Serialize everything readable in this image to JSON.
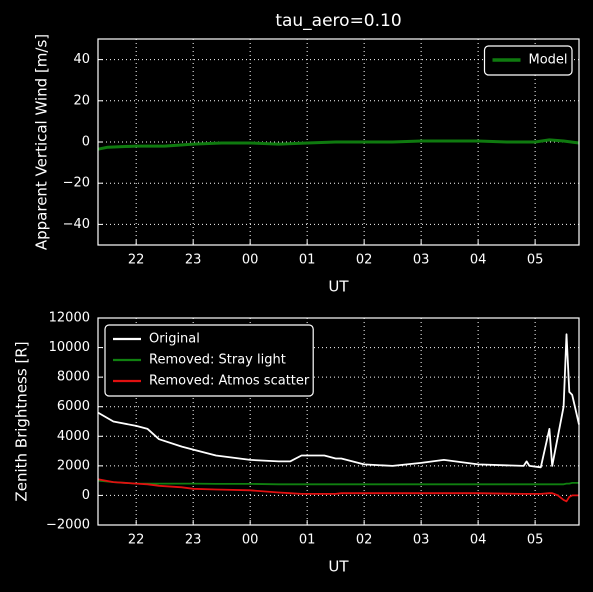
{
  "chart_data": [
    {
      "type": "line",
      "title": "tau_aero=0.10",
      "xlabel": "UT",
      "ylabel": "Apparent Vertical Wind [m/s]",
      "x": [
        21.33,
        21.5,
        22,
        22.5,
        23,
        23.5,
        24,
        24.5,
        25,
        25.5,
        26,
        26.5,
        27,
        27.5,
        28,
        28.5,
        29,
        29.25,
        29.5,
        29.77
      ],
      "series": [
        {
          "name": "Model",
          "color": "#0f7a0f",
          "values": [
            -3.5,
            -2.5,
            -2,
            -2,
            -1,
            -0.5,
            -0.5,
            -1,
            -0.5,
            0,
            0,
            0,
            0.5,
            0.5,
            0.5,
            0,
            0,
            1,
            0.5,
            -0.5
          ]
        }
      ],
      "xlim": [
        21.33,
        29.77
      ],
      "xticks": [
        22,
        23,
        {
          "value": 24,
          "label": "00"
        },
        {
          "value": 25,
          "label": "01"
        },
        {
          "value": 26,
          "label": "02"
        },
        {
          "value": 27,
          "label": "03"
        },
        {
          "value": 28,
          "label": "04"
        },
        {
          "value": 29,
          "label": "05"
        }
      ],
      "ylim": [
        -50,
        50
      ],
      "yticks": [
        {
          "value": -40,
          "label": "−40"
        },
        {
          "value": -20,
          "label": "−20"
        },
        0,
        20,
        40
      ],
      "grid": true,
      "legend": "upper right"
    },
    {
      "type": "line",
      "xlabel": "UT",
      "ylabel": "Zenith Brightness [R]",
      "x": [
        21.33,
        21.6,
        22,
        22.2,
        22.4,
        22.8,
        23,
        23.4,
        24,
        24.5,
        24.7,
        24.9,
        25.3,
        25.5,
        25.6,
        26,
        26.5,
        27,
        27.4,
        28,
        28.8,
        28.85,
        28.9,
        29.1,
        29.25,
        29.3,
        29.4,
        29.5,
        29.55,
        29.6,
        29.65,
        29.77
      ],
      "series": [
        {
          "name": "Original",
          "color": "#ffffff",
          "values": [
            5600,
            5000,
            4700,
            4500,
            3800,
            3300,
            3100,
            2700,
            2400,
            2300,
            2300,
            2700,
            2700,
            2500,
            2500,
            2100,
            2000,
            2200,
            2400,
            2100,
            2000,
            2300,
            2000,
            1900,
            4500,
            2000,
            4000,
            6000,
            10900,
            7000,
            6800,
            4800
          ]
        },
        {
          "name": "Removed: Stray light",
          "color": "#108010",
          "values": [
            1000,
            900,
            800,
            800,
            800,
            800,
            800,
            780,
            780,
            750,
            750,
            750,
            750,
            750,
            750,
            750,
            750,
            750,
            750,
            750,
            750,
            750,
            750,
            750,
            750,
            750,
            750,
            750,
            800,
            800,
            850,
            850
          ]
        },
        {
          "name": "Removed: Atmos scatter",
          "color": "#e01010",
          "values": [
            1100,
            900,
            800,
            750,
            650,
            550,
            450,
            400,
            350,
            200,
            150,
            100,
            100,
            100,
            150,
            150,
            150,
            150,
            150,
            150,
            100,
            100,
            100,
            100,
            150,
            150,
            0,
            -300,
            -400,
            -100,
            0,
            0
          ]
        }
      ],
      "xlim": [
        21.33,
        29.77
      ],
      "xticks": [
        22,
        23,
        {
          "value": 24,
          "label": "00"
        },
        {
          "value": 25,
          "label": "01"
        },
        {
          "value": 26,
          "label": "02"
        },
        {
          "value": 27,
          "label": "03"
        },
        {
          "value": 28,
          "label": "04"
        },
        {
          "value": 29,
          "label": "05"
        }
      ],
      "ylim": [
        -2000,
        12000
      ],
      "yticks": [
        {
          "value": -2000,
          "label": "−2000"
        },
        0,
        2000,
        4000,
        6000,
        8000,
        10000,
        12000
      ],
      "grid": true,
      "legend": "upper left"
    }
  ]
}
